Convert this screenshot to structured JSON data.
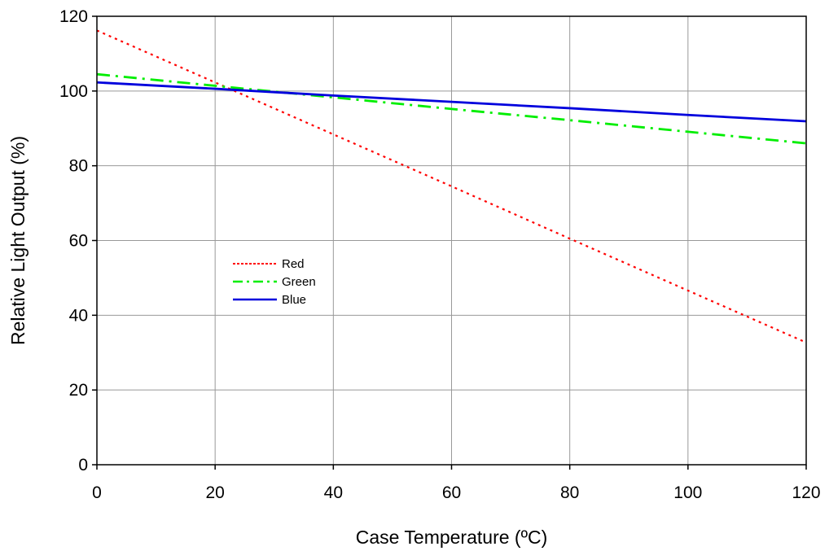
{
  "chart_data": {
    "type": "line",
    "title": "",
    "xlabel": "Case Temperature (ºC)",
    "ylabel": "Relative Light Output (%)",
    "xlim": [
      0,
      120
    ],
    "ylim": [
      0,
      120
    ],
    "xticks": [
      0,
      20,
      40,
      60,
      80,
      100,
      120
    ],
    "yticks": [
      0,
      20,
      40,
      60,
      80,
      100,
      120
    ],
    "xtick_labels": [
      "0",
      "20",
      "40",
      "60",
      "80",
      "100",
      "120"
    ],
    "ytick_labels": [
      "0",
      "20",
      "40",
      "60",
      "80",
      "100",
      "120"
    ],
    "grid": true,
    "legend_position": "center-left",
    "series": [
      {
        "name": "Red",
        "color": "#ff0000",
        "dash": "dotted",
        "x": [
          0,
          20,
          40,
          60,
          80,
          100,
          120
        ],
        "y": [
          116.2,
          102.3,
          88.4,
          74.5,
          60.5,
          46.6,
          32.7
        ]
      },
      {
        "name": "Green",
        "color": "#00ee00",
        "dash": "dash-dot",
        "x": [
          0,
          20,
          40,
          60,
          80,
          100,
          120
        ],
        "y": [
          104.5,
          101.4,
          98.3,
          95.2,
          92.2,
          89.1,
          86.0
        ]
      },
      {
        "name": "Blue",
        "color": "#0000dd",
        "dash": "solid",
        "x": [
          0,
          20,
          40,
          60,
          80,
          100,
          120
        ],
        "y": [
          102.3,
          100.6,
          98.8,
          97.1,
          95.4,
          93.6,
          91.9
        ]
      }
    ]
  }
}
